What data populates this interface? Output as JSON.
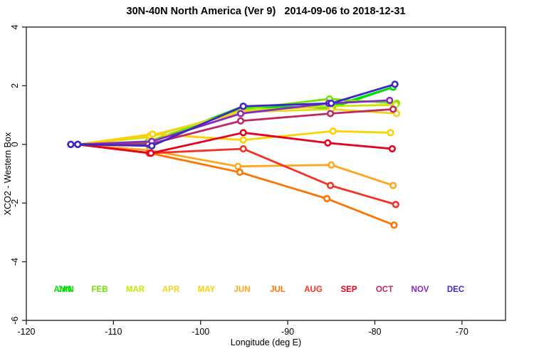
{
  "title": "30N-40N North America (Ver 9)   2014-09-06 to 2018-12-31",
  "chart_data": {
    "type": "line",
    "title": "30N-40N North America (Ver 9)   2014-09-06 to 2018-12-31",
    "xlabel": "Longitude (deg E)",
    "ylabel": "XCO2 - Western Box",
    "xlim": [
      -120,
      -65
    ],
    "ylim": [
      -6,
      4
    ],
    "x_ticks": [
      -120,
      -110,
      -100,
      -90,
      -80,
      -70
    ],
    "y_ticks": [
      4,
      2,
      0,
      -2,
      -4,
      -6
    ],
    "grid": false,
    "marker": "open-circle",
    "legend_position": "bottom-inside",
    "series": [
      {
        "name": "ANN",
        "color": "#00E100",
        "slot": 0,
        "legend_dx": -2,
        "x": [
          -114.9,
          -114.1,
          -106.0,
          -95.1,
          -84.9,
          -77.9
        ],
        "y": [
          0,
          0,
          0.05,
          1.25,
          1.3,
          1.95
        ]
      },
      {
        "name": "JAN",
        "color": "#00DD00",
        "slot": 0,
        "legend_dx": 2,
        "x": [
          -114.9,
          -114.1,
          -106.0,
          -95.1,
          -84.9,
          -77.9
        ],
        "y": [
          0,
          0,
          0.05,
          1.3,
          1.25,
          1.95
        ]
      },
      {
        "name": "FEB",
        "color": "#6EE600",
        "slot": 1,
        "legend_dx": 0,
        "x": [
          -114.9,
          -114.1,
          -106.0,
          -95.2,
          -85.2,
          -77.5
        ],
        "y": [
          0,
          0,
          0.1,
          1.2,
          1.55,
          1.4
        ]
      },
      {
        "name": "MAR",
        "color": "#C8E600",
        "slot": 2,
        "legend_dx": 0,
        "x": [
          -114.9,
          -114.1,
          -105.9,
          -95.3,
          -85.1,
          -77.6
        ],
        "y": [
          0,
          0,
          0.25,
          1.15,
          1.3,
          1.35
        ]
      },
      {
        "name": "APR",
        "color": "#EFD41E",
        "slot": 3,
        "legend_dx": 0,
        "x": [
          -114.9,
          -114.1,
          -105.8,
          -95.2,
          -85.0,
          -77.5
        ],
        "y": [
          0,
          0,
          0.3,
          1.1,
          1.2,
          1.05
        ]
      },
      {
        "name": "MAY",
        "color": "#FFD000",
        "slot": 4,
        "legend_dx": 0,
        "x": [
          -114.9,
          -114.1,
          -105.5,
          -95.1,
          -84.8,
          -78.2
        ],
        "y": [
          0,
          0,
          0.35,
          0.15,
          0.45,
          0.4
        ]
      },
      {
        "name": "JUN",
        "color": "#FFA51E",
        "slot": 5,
        "legend_dx": 0,
        "x": [
          -114.9,
          -114.1,
          -105.9,
          -95.7,
          -85.0,
          -77.9
        ],
        "y": [
          0,
          0,
          -0.2,
          -0.75,
          -0.7,
          -1.4
        ]
      },
      {
        "name": "JUL",
        "color": "#FF7300",
        "slot": 6,
        "legend_dx": 0,
        "x": [
          -114.9,
          -114.1,
          -105.8,
          -95.5,
          -85.5,
          -77.8
        ],
        "y": [
          0,
          0,
          -0.3,
          -0.95,
          -1.85,
          -2.75
        ]
      },
      {
        "name": "AUG",
        "color": "#F53222",
        "slot": 7,
        "legend_dx": 0,
        "x": [
          -114.9,
          -114.1,
          -105.9,
          -95.1,
          -85.1,
          -77.6
        ],
        "y": [
          0,
          0,
          -0.3,
          -0.15,
          -1.4,
          -2.05
        ]
      },
      {
        "name": "SEP",
        "color": "#E8001E",
        "slot": 8,
        "legend_dx": 0,
        "x": [
          -114.9,
          -114.1,
          -105.7,
          -95.1,
          -85.4,
          -78.0
        ],
        "y": [
          0,
          0,
          -0.3,
          0.4,
          0.05,
          -0.15
        ]
      },
      {
        "name": "OCT",
        "color": "#C02864",
        "slot": 9,
        "legend_dx": 0,
        "x": [
          -114.9,
          -114.1,
          -106.0,
          -95.4,
          -85.1,
          -77.9
        ],
        "y": [
          0,
          0,
          0.0,
          0.8,
          1.05,
          1.2
        ]
      },
      {
        "name": "NOV",
        "color": "#8A28C8",
        "slot": 10,
        "legend_dx": 0,
        "x": [
          -114.9,
          -114.1,
          -105.6,
          -95.4,
          -85.3,
          -78.3
        ],
        "y": [
          0,
          0,
          0.1,
          1.05,
          1.4,
          1.5
        ]
      },
      {
        "name": "DEC",
        "color": "#3C28C8",
        "slot": 11,
        "legend_dx": 0,
        "x": [
          -114.9,
          -114.1,
          -105.6,
          -95.1,
          -85.0,
          -77.7
        ],
        "y": [
          0,
          0,
          -0.05,
          1.3,
          1.4,
          2.05
        ]
      }
    ]
  }
}
